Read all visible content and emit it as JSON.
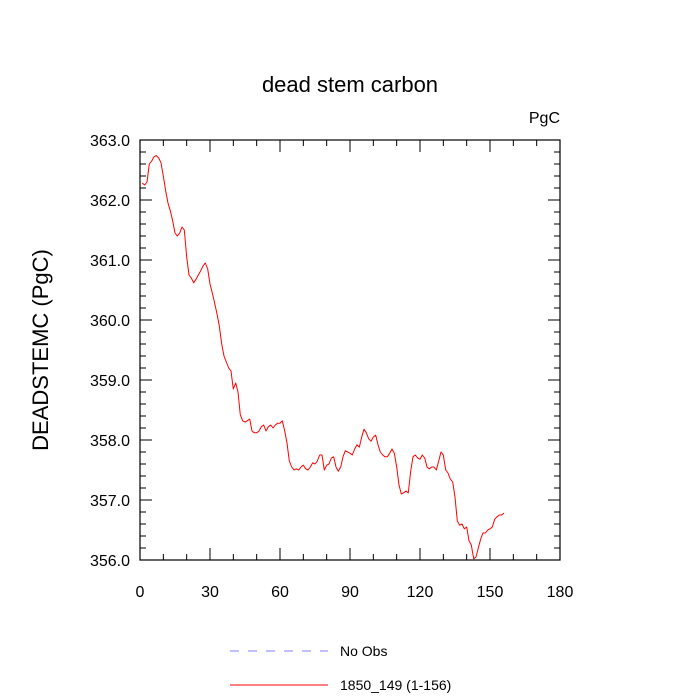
{
  "chart_data": {
    "type": "line",
    "title": "dead stem carbon",
    "unit_label": "PgC",
    "xlabel": "",
    "ylabel": "DEADSTEMC  (PgC)",
    "xlim": [
      0,
      180
    ],
    "ylim": [
      356.0,
      363.0
    ],
    "x_ticks": [
      0,
      30,
      60,
      90,
      120,
      150,
      180
    ],
    "x_tick_labels": [
      "0",
      "30",
      "60",
      "90",
      "120",
      "150",
      "180"
    ],
    "y_ticks": [
      356.0,
      357.0,
      358.0,
      359.0,
      360.0,
      361.0,
      362.0,
      363.0
    ],
    "y_tick_labels": [
      "356.0",
      "357.0",
      "358.0",
      "359.0",
      "360.0",
      "361.0",
      "362.0",
      "363.0"
    ],
    "grid": false,
    "legend_position": "bottom",
    "colors": {
      "obs": "#8080ff",
      "model": "#ff0000",
      "axis": "#000000"
    },
    "legend": [
      {
        "label": "No Obs",
        "style": "dashed",
        "color": "#8080ff"
      },
      {
        "label": "1850_149 (1-156)",
        "style": "solid",
        "color": "#ff0000"
      }
    ],
    "series": [
      {
        "name": "1850_149 (1-156)",
        "color": "#ff0000",
        "x": [
          1,
          2,
          3,
          4,
          5,
          6,
          7,
          8,
          9,
          10,
          11,
          12,
          13,
          14,
          15,
          16,
          17,
          18,
          19,
          20,
          21,
          22,
          23,
          24,
          25,
          26,
          27,
          28,
          29,
          30,
          31,
          32,
          33,
          34,
          35,
          36,
          37,
          38,
          39,
          40,
          41,
          42,
          43,
          44,
          45,
          46,
          47,
          48,
          49,
          50,
          51,
          52,
          53,
          54,
          55,
          56,
          57,
          58,
          59,
          60,
          61,
          62,
          63,
          64,
          65,
          66,
          67,
          68,
          69,
          70,
          71,
          72,
          73,
          74,
          75,
          76,
          77,
          78,
          79,
          80,
          81,
          82,
          83,
          84,
          85,
          86,
          87,
          88,
          89,
          90,
          91,
          92,
          93,
          94,
          95,
          96,
          97,
          98,
          99,
          100,
          101,
          102,
          103,
          104,
          105,
          106,
          107,
          108,
          109,
          110,
          111,
          112,
          113,
          114,
          115,
          116,
          117,
          118,
          119,
          120,
          121,
          122,
          123,
          124,
          125,
          126,
          127,
          128,
          129,
          130,
          131,
          132,
          133,
          134,
          135,
          136,
          137,
          138,
          139,
          140,
          141,
          142,
          143,
          144,
          145,
          146,
          147,
          148,
          149,
          150,
          151,
          152,
          153,
          154,
          155,
          156
        ],
        "y": [
          362.28,
          362.25,
          362.3,
          362.6,
          362.65,
          362.72,
          362.74,
          362.7,
          362.62,
          362.4,
          362.15,
          361.95,
          361.82,
          361.65,
          361.45,
          361.4,
          361.45,
          361.55,
          361.5,
          361.05,
          360.75,
          360.7,
          360.62,
          360.68,
          360.75,
          360.82,
          360.9,
          360.95,
          360.85,
          360.6,
          360.45,
          360.28,
          360.1,
          359.9,
          359.6,
          359.4,
          359.3,
          359.2,
          359.15,
          358.85,
          358.95,
          358.8,
          358.42,
          358.32,
          358.3,
          358.32,
          358.35,
          358.15,
          358.12,
          358.12,
          358.15,
          358.22,
          358.25,
          358.15,
          358.22,
          358.25,
          358.2,
          358.25,
          358.28,
          358.28,
          358.32,
          358.15,
          357.95,
          357.65,
          357.55,
          357.5,
          357.52,
          357.5,
          357.55,
          357.58,
          357.52,
          357.5,
          357.55,
          357.62,
          357.6,
          357.65,
          357.75,
          357.75,
          357.5,
          357.58,
          357.6,
          357.7,
          357.72,
          357.55,
          357.48,
          357.55,
          357.72,
          357.82,
          357.8,
          357.78,
          357.75,
          357.85,
          357.92,
          357.88,
          358.05,
          358.18,
          358.12,
          358.02,
          357.98,
          358.05,
          358.08,
          357.92,
          357.8,
          357.75,
          357.72,
          357.72,
          357.78,
          357.85,
          357.78,
          357.55,
          357.25,
          357.1,
          357.12,
          357.15,
          357.12,
          357.48,
          357.72,
          357.75,
          357.7,
          357.68,
          357.75,
          357.7,
          357.55,
          357.52,
          357.55,
          357.55,
          357.5,
          357.65,
          357.8,
          357.75,
          357.5,
          357.45,
          357.35,
          357.3,
          357.05,
          356.65,
          356.58,
          356.6,
          356.52,
          356.55,
          356.32,
          356.25,
          356.02,
          356.05,
          356.2,
          356.35,
          356.45,
          356.45,
          356.5,
          356.52,
          356.55,
          356.68,
          356.72,
          356.75,
          356.75,
          356.78
        ]
      }
    ]
  }
}
